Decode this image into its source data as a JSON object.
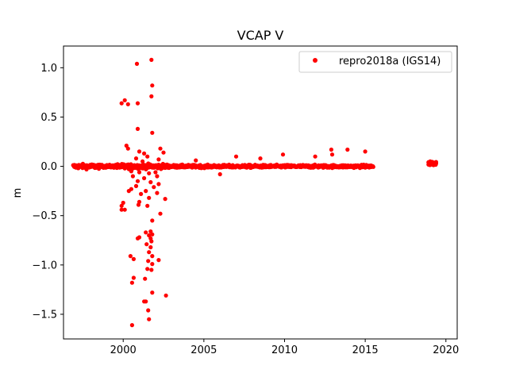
{
  "chart_data": {
    "type": "scatter",
    "title": "VCAP V",
    "xlabel": "",
    "ylabel": "m",
    "xlim": [
      1996.3,
      2020.7
    ],
    "ylim": [
      -1.75,
      1.22
    ],
    "x_ticks": [
      2000,
      2005,
      2010,
      2015,
      2020
    ],
    "y_ticks": [
      -1.5,
      -1.0,
      -0.5,
      0.0,
      0.5,
      1.0
    ],
    "y_tick_labels": [
      "−1.5",
      "−1.0",
      "−0.5",
      "0.0",
      "0.5",
      "1.0"
    ],
    "grid": false,
    "legend_position": "top-right",
    "colors": {
      "series": "#ff0000"
    },
    "series": [
      {
        "name": "repro2018a (IGS14)",
        "marker": "circle",
        "dense_band": {
          "x_start": 1996.9,
          "x_end": 2015.5,
          "y_center": 0.0,
          "y_spread": 0.025
        },
        "cluster": {
          "x_start": 2018.9,
          "x_end": 2019.4,
          "y_center": 0.03,
          "y_spread": 0.03
        },
        "outliers": [
          [
            1999.9,
            0.64
          ],
          [
            2000.1,
            0.67
          ],
          [
            2000.3,
            0.63
          ],
          [
            2000.85,
            1.04
          ],
          [
            2000.9,
            0.64
          ],
          [
            2001.75,
            1.08
          ],
          [
            2001.8,
            0.82
          ],
          [
            2001.75,
            0.71
          ],
          [
            2000.9,
            0.38
          ],
          [
            2001.8,
            0.34
          ],
          [
            2000.2,
            0.21
          ],
          [
            2000.3,
            0.18
          ],
          [
            2001.0,
            0.15
          ],
          [
            2001.3,
            0.13
          ],
          [
            2002.5,
            0.14
          ],
          [
            2001.5,
            0.1
          ],
          [
            2000.8,
            0.08
          ],
          [
            2002.2,
            0.07
          ],
          [
            2002.3,
            0.18
          ],
          [
            2001.2,
            0.05
          ],
          [
            2000.1,
            -0.02
          ],
          [
            2000.5,
            -0.05
          ],
          [
            2001.0,
            -0.06
          ],
          [
            2001.6,
            -0.07
          ],
          [
            2002.0,
            -0.06
          ],
          [
            2000.6,
            -0.1
          ],
          [
            2001.3,
            -0.12
          ],
          [
            2002.1,
            -0.1
          ],
          [
            2000.9,
            -0.15
          ],
          [
            2001.7,
            -0.16
          ],
          [
            2000.8,
            -0.2
          ],
          [
            2002.2,
            -0.18
          ],
          [
            2001.9,
            -0.21
          ],
          [
            2000.5,
            -0.23
          ],
          [
            2001.4,
            -0.25
          ],
          [
            2000.35,
            -0.25
          ],
          [
            2001.1,
            -0.28
          ],
          [
            2002.1,
            -0.27
          ],
          [
            2001.6,
            -0.32
          ],
          [
            2002.6,
            -0.33
          ],
          [
            2000.0,
            -0.37
          ],
          [
            1999.9,
            -0.4
          ],
          [
            2001.0,
            -0.36
          ],
          [
            2000.95,
            -0.39
          ],
          [
            2001.5,
            -0.4
          ],
          [
            1999.9,
            -0.44
          ],
          [
            2000.1,
            -0.44
          ],
          [
            2002.3,
            -0.48
          ],
          [
            2001.8,
            -0.55
          ],
          [
            2001.7,
            -0.66
          ],
          [
            2001.8,
            -0.69
          ],
          [
            2001.4,
            -0.67
          ],
          [
            2001.6,
            -0.7
          ],
          [
            2001.0,
            -0.72
          ],
          [
            2000.9,
            -0.73
          ],
          [
            2001.7,
            -0.73
          ],
          [
            2001.75,
            -0.76
          ],
          [
            2001.45,
            -0.79
          ],
          [
            2001.7,
            -0.82
          ],
          [
            2001.6,
            -0.87
          ],
          [
            2001.8,
            -0.91
          ],
          [
            2000.45,
            -0.91
          ],
          [
            2000.65,
            -0.94
          ],
          [
            2001.55,
            -0.96
          ],
          [
            2002.2,
            -0.95
          ],
          [
            2001.8,
            -0.99
          ],
          [
            2001.5,
            -1.04
          ],
          [
            2001.75,
            -1.05
          ],
          [
            2000.65,
            -1.13
          ],
          [
            2001.35,
            -1.14
          ],
          [
            2000.55,
            -1.18
          ],
          [
            2001.8,
            -1.28
          ],
          [
            2002.65,
            -1.31
          ],
          [
            2001.3,
            -1.37
          ],
          [
            2001.4,
            -1.37
          ],
          [
            2001.55,
            -1.46
          ],
          [
            2000.55,
            -1.61
          ],
          [
            2001.6,
            -1.55
          ],
          [
            2006.0,
            -0.08
          ],
          [
            2009.9,
            0.12
          ],
          [
            2012.9,
            0.17
          ],
          [
            2012.95,
            0.12
          ],
          [
            2013.9,
            0.17
          ],
          [
            2015.0,
            0.15
          ],
          [
            2011.9,
            0.1
          ],
          [
            2007.0,
            0.1
          ],
          [
            2008.5,
            0.08
          ],
          [
            2004.5,
            0.06
          ]
        ]
      }
    ]
  }
}
